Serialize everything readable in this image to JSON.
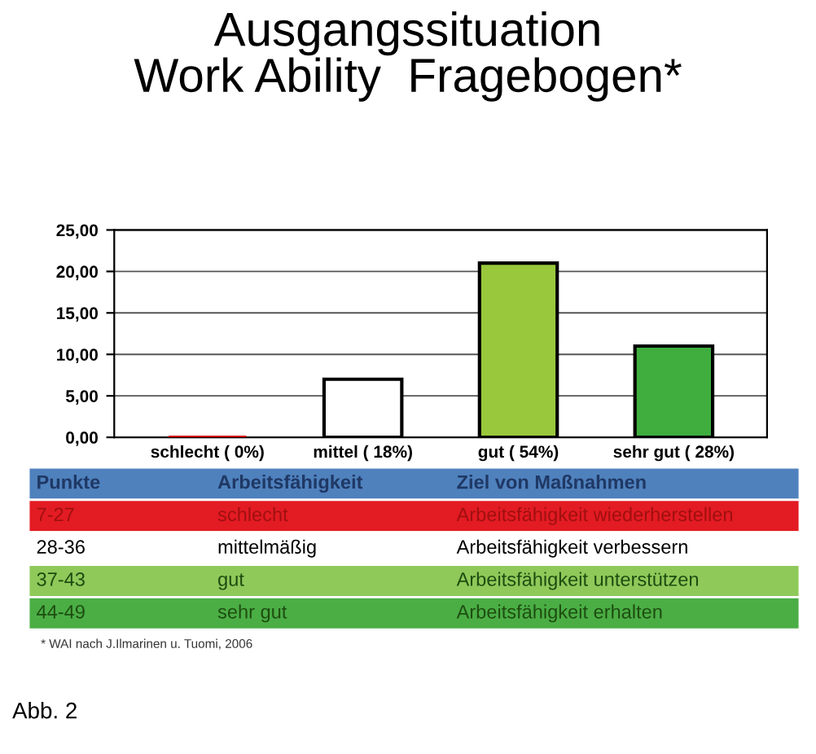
{
  "chart_data": {
    "type": "bar",
    "title": "Ausgangssituation\nWork Ability  Fragebogen*",
    "categories": [
      "schlecht ( 0%)",
      "mittel ( 18%)",
      "gut ( 54%)",
      "sehr gut ( 28%)"
    ],
    "values": [
      0,
      7,
      21,
      11
    ],
    "colors": [
      "#d40000",
      "#ffffff",
      "#99c83c",
      "#3fae3f"
    ],
    "ylim": [
      0,
      25
    ],
    "yticks": [
      {
        "value": 0,
        "label": "0,00"
      },
      {
        "value": 5,
        "label": "5,00"
      },
      {
        "value": 10,
        "label": "10,00"
      },
      {
        "value": 15,
        "label": "15,00"
      },
      {
        "value": 20,
        "label": "20,00"
      },
      {
        "value": 25,
        "label": "25,00"
      }
    ],
    "grid": "y",
    "annotations": [
      "Punkte",
      "Arbeitsfähigkeit",
      "Ziel von Maßnahmen",
      "7-27",
      "schlecht",
      "Arbeitsfähigkeit wiederherstellen",
      "28-36",
      "mittelmäßig",
      "Arbeitsfähigkeit verbessern",
      "37-43",
      "gut",
      "Arbeitsfähigkeit unterstützen",
      "44-49",
      "sehr gut",
      "Arbeitsfähigkeit erhalten",
      "* WAI nach J.Ilmarinen u. Tuomi, 2006",
      "Abb. 2"
    ]
  }
}
